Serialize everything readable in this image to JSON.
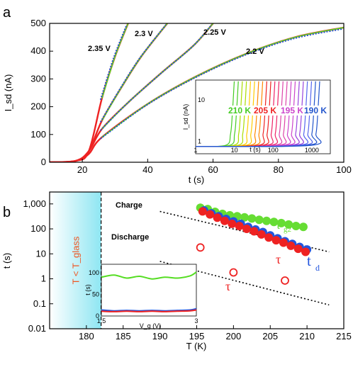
{
  "panel_a_label": "a",
  "panel_b_label": "b",
  "chart_data": [
    {
      "type": "line",
      "panel": "a",
      "xlabel": "t (s)",
      "ylabel": "I_sd (nA)",
      "xlim": [
        10,
        100
      ],
      "ylim": [
        0,
        500
      ],
      "xticks": [
        20,
        40,
        60,
        80,
        100
      ],
      "yticks": [
        0,
        100,
        200,
        300,
        400,
        500
      ],
      "grid": false,
      "voltage_labels": [
        "2.35 V",
        "2.3 V",
        "2.25 V",
        "2.2 V"
      ],
      "series": [
        {
          "name": "2.35 V",
          "x": [
            10,
            18,
            22,
            26,
            30,
            34
          ],
          "y": [
            0,
            5,
            40,
            230,
            380,
            500
          ]
        },
        {
          "name": "2.3 V",
          "x": [
            10,
            18,
            22,
            26,
            32,
            38,
            46
          ],
          "y": [
            0,
            5,
            40,
            150,
            270,
            380,
            500
          ]
        },
        {
          "name": "2.25 V",
          "x": [
            10,
            18,
            22,
            26,
            34,
            44,
            54,
            60
          ],
          "y": [
            0,
            5,
            40,
            120,
            215,
            320,
            420,
            500
          ]
        },
        {
          "name": "2.2 V",
          "x": [
            10,
            18,
            22,
            26,
            40,
            55,
            70,
            85,
            100
          ],
          "y": [
            0,
            5,
            30,
            90,
            210,
            310,
            390,
            450,
            485
          ]
        }
      ],
      "colors": {
        "measured": "#ee2222",
        "fit_solid": "#55dd22",
        "fit_dotted": "#2255cc"
      },
      "inset": {
        "type": "line",
        "xlabel": "t (s)",
        "ylabel": "I_sd (nA)",
        "xscale": "log",
        "yscale": "log",
        "xlim": [
          1,
          3000
        ],
        "ylim": [
          0.5,
          30
        ],
        "xticks": [
          "1",
          "10",
          "100",
          "1000"
        ],
        "yticks": [
          "1",
          "10"
        ],
        "temperature_labels": [
          "210 K",
          "205 K",
          "195 K",
          "190 K"
        ],
        "temperature_colors": [
          "#44cc22",
          "#ee2222",
          "#cc44cc",
          "#2255cc"
        ]
      }
    },
    {
      "type": "scatter",
      "panel": "b",
      "xlabel": "T (K)",
      "ylabel": "t (s)",
      "xlim": [
        175,
        215
      ],
      "ylim": [
        0.01,
        3000
      ],
      "yscale": "log",
      "xticks": [
        180,
        185,
        190,
        195,
        200,
        205,
        210,
        215
      ],
      "yticks": [
        "0.01",
        "0.1",
        "1",
        "10",
        "100",
        "1,000"
      ],
      "shaded_region_label": "T < T_glass",
      "shaded_region_xlim": [
        175,
        182
      ],
      "line_labels": [
        "Charge",
        "Discharge"
      ],
      "lines": [
        {
          "name": "Charge",
          "x": [
            190,
            213
          ],
          "y": [
            500,
            12
          ]
        },
        {
          "name": "Discharge",
          "x": [
            190,
            213
          ],
          "y": [
            5,
            0.09
          ]
        }
      ],
      "series": [
        {
          "name": "τ_g2",
          "color": "#66dd33",
          "x": [
            195.5,
            196.5,
            197.5,
            198.5,
            199.5,
            200.5,
            201.5,
            202.5,
            203.5,
            204.5,
            205.5,
            206.5,
            207.5,
            208.5,
            209.5
          ],
          "y": [
            700,
            620,
            480,
            400,
            350,
            320,
            290,
            260,
            230,
            210,
            190,
            170,
            150,
            130,
            120
          ]
        },
        {
          "name": "t_d",
          "color": "#2255dd",
          "x": [
            196,
            197,
            198,
            199,
            200,
            201,
            202,
            203,
            204,
            205,
            206,
            207,
            208,
            209,
            210
          ],
          "y": [
            550,
            420,
            320,
            250,
            200,
            160,
            120,
            95,
            75,
            55,
            42,
            32,
            25,
            19,
            15
          ]
        },
        {
          "name": "τ",
          "color": "#ee2222",
          "x": [
            195.8,
            196.8,
            197.8,
            198.8,
            199.8,
            200.8,
            201.8,
            202.8,
            203.8,
            204.8,
            205.8,
            206.8,
            207.8,
            208.8,
            209.8
          ],
          "y": [
            500,
            380,
            280,
            210,
            160,
            130,
            100,
            80,
            60,
            45,
            35,
            28,
            21,
            16,
            12
          ]
        },
        {
          "name": "τ (open)",
          "color": "#ee2222",
          "open": true,
          "x": [
            195.5,
            200,
            207
          ],
          "y": [
            18,
            1.8,
            0.85
          ]
        }
      ],
      "legend_labels": {
        "tau_g2_base": "τ",
        "tau_g2_sub": "g2",
        "tau": "τ",
        "t_d_base": "t",
        "t_d_sub": "d",
        "tau_open": "τ"
      },
      "inset": {
        "type": "line",
        "xlabel": "V_g (V)",
        "ylabel": "t (s)",
        "xlim": [
          1.5,
          3
        ],
        "ylim": [
          0,
          120
        ],
        "xticks": [
          "1.5",
          "3"
        ],
        "yticks": [
          "0",
          "50",
          "100"
        ],
        "series": [
          {
            "name": "green",
            "color": "#55dd22",
            "x": [
              1.5,
              1.7,
              1.9,
              2.1,
              2.3,
              2.5,
              2.7,
              2.9,
              3.0
            ],
            "y": [
              90,
              95,
              88,
              92,
              86,
              90,
              88,
              93,
              102
            ]
          },
          {
            "name": "blue",
            "color": "#2255dd",
            "x": [
              1.5,
              1.7,
              1.9,
              2.1,
              2.3,
              2.5,
              2.7,
              2.9,
              3.0
            ],
            "y": [
              14,
              12,
              13,
              12,
              13,
              12,
              13,
              14,
              17
            ]
          },
          {
            "name": "red",
            "color": "#ee2222",
            "x": [
              1.5,
              1.7,
              1.9,
              2.1,
              2.3,
              2.5,
              2.7,
              2.9,
              3.0
            ],
            "y": [
              11,
              10,
              11,
              10,
              11,
              10,
              11,
              12,
              14
            ]
          }
        ]
      }
    }
  ]
}
